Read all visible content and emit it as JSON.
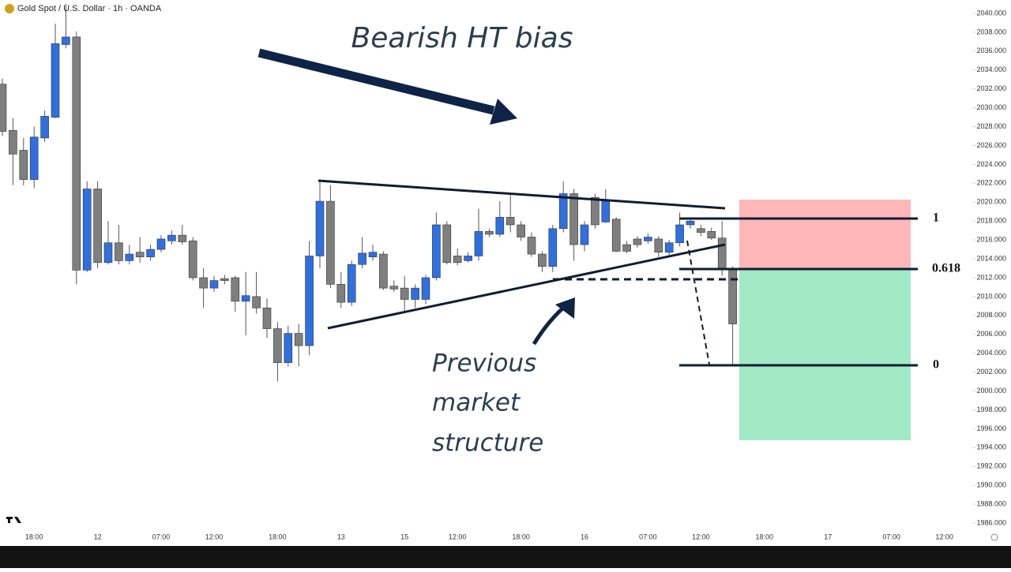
{
  "chart_data": {
    "type": "candlestick",
    "title": "Gold Spot / U.S. Dollar · 1h · OANDA",
    "categories": [
      null,
      null,
      null,
      "18:00",
      null,
      null,
      null,
      null,
      null,
      "12",
      null,
      null,
      null,
      null,
      null,
      "07:00",
      null,
      null,
      null,
      null,
      "12:00",
      null,
      null,
      null,
      null,
      null,
      "18:00",
      null,
      null,
      null,
      null,
      null,
      "13",
      null,
      null,
      null,
      null,
      null,
      "15",
      null,
      null,
      null,
      null,
      "12:00",
      null,
      null,
      null,
      null,
      null,
      "18:00",
      null,
      null,
      null,
      null,
      null,
      "16",
      null,
      null,
      null,
      null,
      null,
      "07:00",
      null,
      null,
      null,
      null,
      "12:00",
      null,
      null,
      null,
      null,
      null,
      "18:00",
      null,
      null,
      null,
      null,
      null,
      "17",
      null,
      null,
      null,
      null,
      null,
      "07:00",
      null,
      null,
      null,
      null,
      "12:00",
      null,
      null
    ],
    "open": [
      2032.5,
      2027.6,
      2025.5,
      2022.4,
      2026.8,
      2029.0,
      2036.7,
      2037.5,
      2012.8,
      2021.4,
      2013.6,
      2015.7,
      2013.8,
      2014.7,
      2014.2,
      2015.0,
      2015.9,
      2016.5,
      2015.9,
      2012.0,
      2010.9,
      2011.9,
      2012.0,
      2009.5,
      2010.0,
      2008.8,
      2006.6,
      2003.0,
      2006.1,
      2004.8,
      2014.3,
      2020.1,
      2011.3,
      2009.4,
      2013.4,
      2014.2,
      2014.5,
      2011.1,
      2010.9,
      2009.7,
      2009.7,
      2012.0,
      2017.6,
      2014.3,
      2013.8,
      2014.3,
      2016.9,
      2016.6,
      2018.4,
      2017.6,
      2016.3,
      2014.5,
      2013.2,
      2017.2,
      2020.9,
      2015.5,
      2020.5,
      2017.9,
      2018.2,
      2015.5,
      2016.1,
      2015.9,
      2016.1,
      2014.7,
      2015.7,
      2017.6,
      2017.2,
      2016.9,
      2016.2,
      2013.0,
      null,
      null,
      null,
      null,
      null,
      null,
      null,
      null,
      null,
      null,
      null,
      null,
      null,
      null,
      null,
      null,
      null,
      null,
      null,
      null,
      null,
      null
    ],
    "high": [
      2033.1,
      2028.9,
      2026.8,
      2028.0,
      2029.7,
      2038.9,
      2041.0,
      2038.1,
      2022.2,
      2022.2,
      2018.0,
      2017.6,
      2015.5,
      2016.3,
      2015.5,
      2016.5,
      2017.0,
      2017.6,
      2016.3,
      2013.0,
      2012.2,
      2012.3,
      2012.2,
      2012.6,
      2012.6,
      2009.8,
      2007.3,
      2006.9,
      2007.1,
      2015.9,
      2022.2,
      2021.8,
      2012.6,
      2013.8,
      2016.3,
      2015.5,
      2014.8,
      2011.7,
      2012.2,
      2011.3,
      2012.3,
      2018.9,
      2018.0,
      2015.1,
      2014.7,
      2019.3,
      2017.2,
      2020.1,
      2020.9,
      2018.0,
      2016.8,
      2014.8,
      2017.6,
      2022.2,
      2021.4,
      2018.0,
      2020.9,
      2021.4,
      2018.4,
      2015.9,
      2016.4,
      2016.7,
      2016.4,
      2016.0,
      2018.9,
      2018.4,
      2017.6,
      2017.3,
      2018.0,
      2013.2,
      null,
      null,
      null,
      null,
      null,
      null,
      null,
      null,
      null,
      null,
      null,
      null,
      null,
      null,
      null,
      null,
      null,
      null,
      null,
      null,
      null,
      null
    ],
    "low": [
      2027.0,
      2021.8,
      2021.8,
      2021.5,
      2026.4,
      2028.9,
      2036.3,
      2011.3,
      2012.6,
      2013.0,
      2013.4,
      2013.4,
      2013.4,
      2013.6,
      2013.8,
      2014.7,
      2015.5,
      2015.5,
      2011.7,
      2008.8,
      2010.5,
      2011.3,
      2008.4,
      2005.9,
      2008.2,
      2005.6,
      2001.0,
      2002.6,
      2002.6,
      2003.8,
      2013.0,
      2010.9,
      2008.8,
      2009.0,
      2013.0,
      2013.8,
      2010.7,
      2010.5,
      2008.2,
      2008.8,
      2009.2,
      2011.7,
      2013.4,
      2013.3,
      2013.6,
      2013.8,
      2016.3,
      2016.3,
      2016.8,
      2015.9,
      2014.2,
      2012.6,
      2012.6,
      2016.8,
      2013.8,
      2014.8,
      2017.2,
      2017.8,
      2014.7,
      2014.6,
      2015.2,
      2015.6,
      2014.2,
      2014.4,
      2015.3,
      2017.2,
      2016.4,
      2016.0,
      2012.2,
      2002.8,
      null,
      null,
      null,
      null,
      null,
      null,
      null,
      null,
      null,
      null,
      null,
      null,
      null,
      null,
      null,
      null,
      null,
      null,
      null,
      null,
      null,
      null
    ],
    "close": [
      2027.5,
      2025.1,
      2022.4,
      2026.9,
      2029.1,
      2036.8,
      2037.5,
      2012.8,
      2021.4,
      2013.6,
      2015.7,
      2013.8,
      2014.5,
      2014.2,
      2015.0,
      2016.1,
      2016.5,
      2015.8,
      2012.0,
      2010.9,
      2011.7,
      2011.7,
      2009.5,
      2010.1,
      2008.8,
      2006.6,
      2003.0,
      2006.1,
      2004.8,
      2014.3,
      2020.1,
      2011.3,
      2009.4,
      2013.4,
      2014.6,
      2014.7,
      2010.9,
      2010.8,
      2009.7,
      2010.9,
      2012.0,
      2017.6,
      2013.6,
      2013.6,
      2014.3,
      2016.9,
      2016.6,
      2018.4,
      2017.6,
      2016.3,
      2014.5,
      2013.2,
      2017.2,
      2020.9,
      2015.5,
      2017.6,
      2017.6,
      2020.1,
      2014.8,
      2014.8,
      2015.5,
      2016.3,
      2014.7,
      2015.7,
      2017.6,
      2018.0,
      2016.8,
      2016.2,
      2013.0,
      2007.1,
      null,
      null,
      null,
      null,
      null,
      null,
      null,
      null,
      null,
      null,
      null,
      null,
      null,
      null,
      null,
      null,
      null,
      null,
      null,
      null,
      null,
      null
    ],
    "up_color": "#2f6fe0",
    "down_color": "#7f7f7f",
    "ylim": [
      1985.25,
      2041.42
    ],
    "yticks": [
      {
        "value": 1986,
        "label": "1986.000"
      },
      {
        "value": 1988,
        "label": "1988.000"
      },
      {
        "value": 1990,
        "label": "1990.000"
      },
      {
        "value": 1992,
        "label": "1992.000"
      },
      {
        "value": 1994,
        "label": "1994.000"
      },
      {
        "value": 1996,
        "label": "1996.000"
      },
      {
        "value": 1998,
        "label": "1998.000"
      },
      {
        "value": 2000,
        "label": "2000.000"
      },
      {
        "value": 2002,
        "label": "2002.000"
      },
      {
        "value": 2004,
        "label": "2004.000"
      },
      {
        "value": 2006,
        "label": "2006.000"
      },
      {
        "value": 2008,
        "label": "2008.000"
      },
      {
        "value": 2010,
        "label": "2010.000"
      },
      {
        "value": 2012,
        "label": "2012.000"
      },
      {
        "value": 2014,
        "label": "2014.000"
      },
      {
        "value": 2016,
        "label": "2016.000"
      },
      {
        "value": 2018,
        "label": "2018.000"
      },
      {
        "value": 2020,
        "label": "2020.000"
      },
      {
        "value": 2022,
        "label": "2022.000"
      },
      {
        "value": 2024,
        "label": "2024.000"
      },
      {
        "value": 2026,
        "label": "2026.000"
      },
      {
        "value": 2028,
        "label": "2028.000"
      },
      {
        "value": 2030,
        "label": "2030.000"
      },
      {
        "value": 2032,
        "label": "2032.000"
      },
      {
        "value": 2034,
        "label": "2034.000"
      },
      {
        "value": 2036,
        "label": "2036.000"
      },
      {
        "value": 2038,
        "label": "2038.000"
      },
      {
        "value": 2040,
        "label": "2040.000"
      }
    ],
    "fib": {
      "levels": [
        1,
        0.618,
        0
      ],
      "prices": [
        2018.27,
        2012.92,
        2002.72
      ],
      "color": "#0f1d33"
    },
    "position": {
      "stop": 2020.27,
      "entry": 2012.92,
      "target": 1994.78,
      "stop_color": "#ffb3b3",
      "target_color": "#9de8c2"
    },
    "annotations": {
      "bias": "Bearish HT bias",
      "structure": [
        "Previous",
        "market",
        "structure"
      ]
    }
  }
}
